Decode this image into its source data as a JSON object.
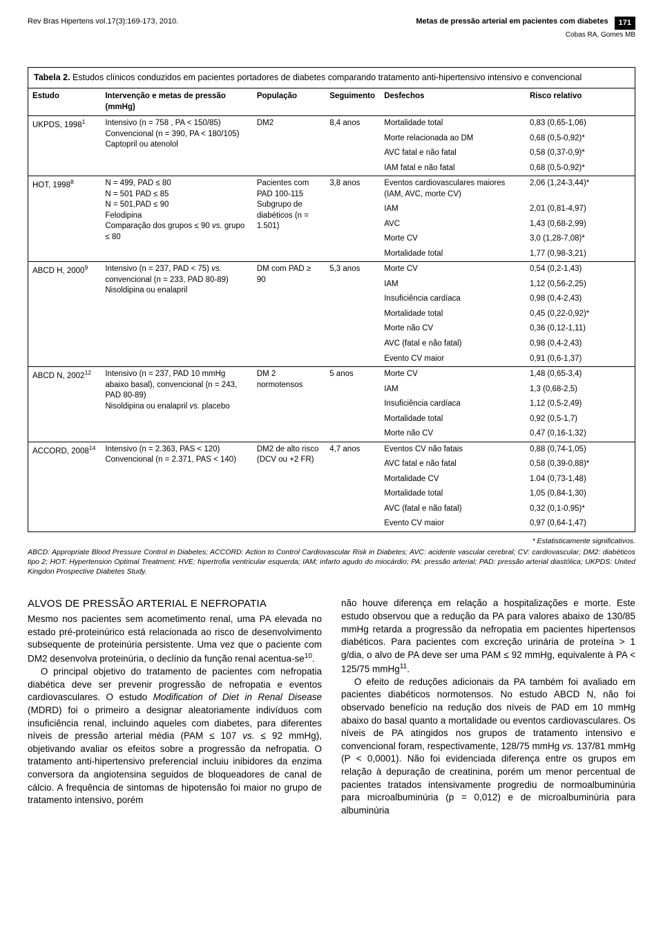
{
  "header": {
    "journal": "Rev Bras Hipertens vol.17(3):169-173, 2010.",
    "article_title": "Metas de pressão arterial em pacientes com diabetes",
    "authors": "Cobas RA, Gomes MB",
    "page_number": "171"
  },
  "table": {
    "caption_bold": "Tabela 2.",
    "caption_rest": " Estudos clínicos conduzidos em pacientes portadores de diabetes comparando tratamento anti-hipertensivo intensivo e convencional",
    "columns": [
      "Estudo",
      "Intervenção e metas de pressão (mmHg)",
      "População",
      "Seguimento",
      "Desfechos",
      "Risco relativo"
    ],
    "studies": [
      {
        "name": "UKPDS, 1998",
        "ref": "1",
        "intervention": [
          "Intensivo (n = 758 , PA < 150/85)",
          "Convencional (n = 390, PA < 180/105)",
          "Captopril ou atenolol"
        ],
        "population": "DM2",
        "followup": "8,4 anos",
        "outcomes": [
          {
            "d": "Mortalidade total",
            "r": "0,83 (0,65-1,06)"
          },
          {
            "d": "Morte relacionada ao DM",
            "r": "0,68 (0,5-0,92)*"
          },
          {
            "d": "AVC fatal e não fatal",
            "r": "0,58 (0,37-0,9)*"
          },
          {
            "d": "IAM fatal e não fatal",
            "r": "0,68 (0,5-0,92)*"
          }
        ]
      },
      {
        "name": "HOT, 1998",
        "ref": "8",
        "intervention": [
          "N = 499, PAD ≤ 80",
          "N = 501 PAD ≤ 85",
          "N = 501,PAD ≤ 90",
          "Felodipina",
          "Comparação dos grupos ≤ 90 vs. grupo ≤ 80"
        ],
        "population": "Pacientes com PAD 100-115 Subgrupo de diabéticos (n = 1.501)",
        "followup": "3,8 anos",
        "outcomes": [
          {
            "d": "Eventos cardiovasculares maiores (IAM, AVC, morte CV)",
            "r": "2,06 (1,24-3,44)*"
          },
          {
            "d": "IAM",
            "r": "2,01 (0,81-4,97)"
          },
          {
            "d": "AVC",
            "r": "1,43 (0,68-2,99)"
          },
          {
            "d": "Morte CV",
            "r": "3,0 (1,28-7,08)*"
          },
          {
            "d": "Mortalidade total",
            "r": "1,77 (0,98-3,21)"
          }
        ]
      },
      {
        "name": "ABCD H, 2000",
        "ref": "9",
        "intervention": [
          "Intensivo (n = 237, PAD < 75) vs. convencional (n = 233, PAD 80-89)",
          "Nisoldipina ou enalapril"
        ],
        "population": "DM com PAD ≥ 90",
        "followup": "5,3 anos",
        "outcomes": [
          {
            "d": "Morte CV",
            "r": "0,54 (0,2-1,43)"
          },
          {
            "d": "IAM",
            "r": "1,12 (0,56-2,25)"
          },
          {
            "d": "Insuficiência cardíaca",
            "r": "0,98 (0,4-2,43)"
          },
          {
            "d": "Mortalidade total",
            "r": "0,45 (0,22-0,92)*"
          },
          {
            "d": "Morte não CV",
            "r": "0,36 (0,12-1,11)"
          },
          {
            "d": "AVC (fatal e não fatal)",
            "r": "0,98 (0,4-2,43)"
          },
          {
            "d": "Evento CV maior",
            "r": "0,91 (0,6-1,37)"
          }
        ]
      },
      {
        "name": "ABCD N, 2002",
        "ref": "12",
        "intervention": [
          "Intensivo (n = 237, PAD 10 mmHg abaixo basal), convencional (n = 243, PAD 80-89)",
          "Nisoldipina ou enalapril vs. placebo"
        ],
        "population": "DM 2 normotensos",
        "followup": "5 anos",
        "outcomes": [
          {
            "d": "Morte CV",
            "r": "1,48 (0,65-3,4)"
          },
          {
            "d": "IAM",
            "r": "1,3 (0,68-2,5)"
          },
          {
            "d": "Insuficiência cardíaca",
            "r": "1,12 (0,5-2,49)"
          },
          {
            "d": "Mortalidade total",
            "r": "0,92 (0,5-1,7)"
          },
          {
            "d": "Morte não CV",
            "r": "0,47 (0,16-1,32)"
          }
        ]
      },
      {
        "name": "ACCORD, 2008",
        "ref": "14",
        "intervention": [
          "Intensivo (n = 2.363, PAS < 120)",
          "Convencional (n = 2.371, PAS < 140)"
        ],
        "population": "DM2 de alto risco (DCV ou +2 FR)",
        "followup": "4,7 anos",
        "outcomes": [
          {
            "d": "Eventos CV não fatais",
            "r": "0,88 (0,74-1,05)"
          },
          {
            "d": "AVC fatal e não fatal",
            "r": "0,58 (0,39-0,88)*"
          },
          {
            "d": "Mortalidade CV",
            "r": "1.04 (0,73-1,48)"
          },
          {
            "d": "Mortalidade total",
            "r": "1,05 (0,84-1,30)"
          },
          {
            "d": "AVC (fatal e não fatal)",
            "r": "0,32 (0,1-0,95)*"
          },
          {
            "d": "Evento CV maior",
            "r": "0,97 (0,64-1,47)"
          }
        ]
      }
    ]
  },
  "footnote": {
    "sig": "* Estatisticamente significativos.",
    "text": "ABCD: Appropriate Blood Pressure Control in Diabetes; ACCORD: Action to Control Cardiovascular Risk in Diabetes; AVC: acidente vascular cerebral; CV: cardiovascular; DM2: diabéticos tipo 2; HOT: Hypertension Optimal Treatment; HVE; hipertrofia ventricular esquerda; IAM; infarto agudo do miocárdio; PA: pressão arterial; PAD: pressão arterial diastólica; UKPDS: United Kingdon Prospective Diabetes Study."
  },
  "body": {
    "heading": "ALVOS DE PRESSÃO ARTERIAL E NEFROPATIA",
    "left_p1": "Mesmo nos pacientes sem acometimento renal, uma PA elevada no estado pré-proteinúrico está relacionada ao risco de desenvolvimento subsequente de proteinúria persistente. Uma vez que o paciente com DM2 desenvolva proteinúria, o declínio da função renal acentua-se",
    "left_p1_ref": "10",
    "left_p2a": "O principal objetivo do tratamento de pacientes com nefropatia diabética deve ser prevenir progressão de nefropatia e eventos cardiovasculares. O estudo ",
    "left_p2_em": "Modification of Diet in Renal Disease",
    "left_p2b": " (MDRD) foi o primeiro a designar aleatoriamente indivíduos com insuficiência renal, incluindo aqueles com diabetes, para diferentes níveis de pressão arterial média (PAM ≤ 107 ",
    "left_p2_vs": "vs.",
    "left_p2c": " ≤ 92 mmHg), objetivando avaliar os efeitos sobre a progressão da nefropatia. O tratamento anti-hipertensivo preferencial incluiu inibidores da enzima conversora da angiotensina seguidos de bloqueadores de canal de cálcio. A frequência de sintomas de hipotensão foi maior no grupo de tratamento intensivo, porém",
    "right_p1a": "não houve diferença em relação a hospitalizações e morte. Este estudo observou que a redução da PA para valores abaixo de 130/85 mmHg retarda a progressão da nefropatia em pacientes hipertensos diabéticos. Para pacientes com excreção urinária de proteína > 1 g/dia, o alvo de PA deve ser uma PAM ≤ 92 mmHg, equivalente à PA < 125/75 mmHg",
    "right_p1_ref": "11",
    "right_p2a": "O efeito de reduções adicionais da PA também foi avaliado em pacientes diabéticos normotensos. No estudo ABCD N, não foi observado benefício na redução dos níveis de PAD em 10 mmHg abaixo do basal quanto a mortalidade ou eventos cardiovasculares. Os níveis de PA atingidos nos grupos de tratamento intensivo e convencional foram, respectivamente, 128/75 mmHg ",
    "right_p2_vs": "vs.",
    "right_p2b": " 137/81 mmHg (P < 0,0001). Não foi evidenciada diferença entre os grupos em relação à depuração de creatinina, porém um menor percentual de pacientes tratados intensivamente progrediu de normoalbuminúria para microalbuminúria (p = 0,012) e de microalbuminúria para albuminúria"
  }
}
